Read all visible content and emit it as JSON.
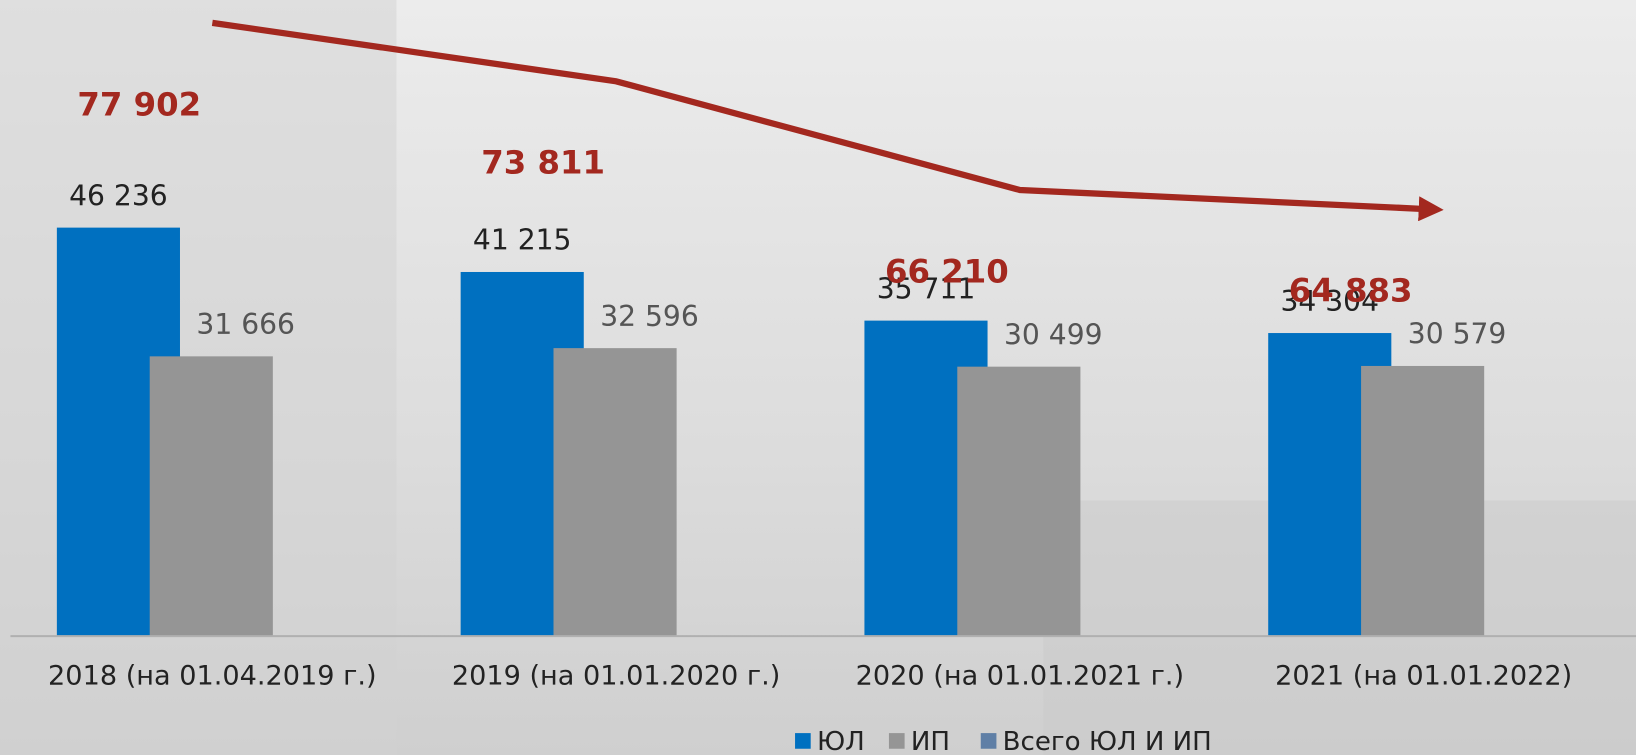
{
  "chart_data": {
    "type": "bar",
    "categories": [
      "2018 (на 01.04.2019 г.)",
      "2019 (на 01.01.2020 г.)",
      "2020 (на 01.01.2021 г.)",
      "2021 (на 01.01.2022)"
    ],
    "series": [
      {
        "name": "ЮЛ",
        "color": "#0070c0",
        "values": [
          46236,
          41215,
          35711,
          34304
        ],
        "value_labels": [
          "46 236",
          "41 215",
          "35 711",
          "34 304"
        ]
      },
      {
        "name": "ИП",
        "color": "#959595",
        "values": [
          31666,
          32596,
          30499,
          30579
        ],
        "value_labels": [
          "31 666",
          "32 596",
          "30 499",
          "30 579"
        ]
      },
      {
        "name": "Всего ЮЛ И ИП",
        "color": "#a3281f",
        "type": "line",
        "axis": "y2",
        "values": [
          77902,
          73811,
          66210,
          64883
        ],
        "value_labels": [
          "77 902",
          "73 811",
          "66 210",
          "64 883"
        ]
      }
    ],
    "ylim": [
      0,
      72000
    ],
    "y2lim": [
      35000,
      79500
    ],
    "legend": "bottom"
  }
}
